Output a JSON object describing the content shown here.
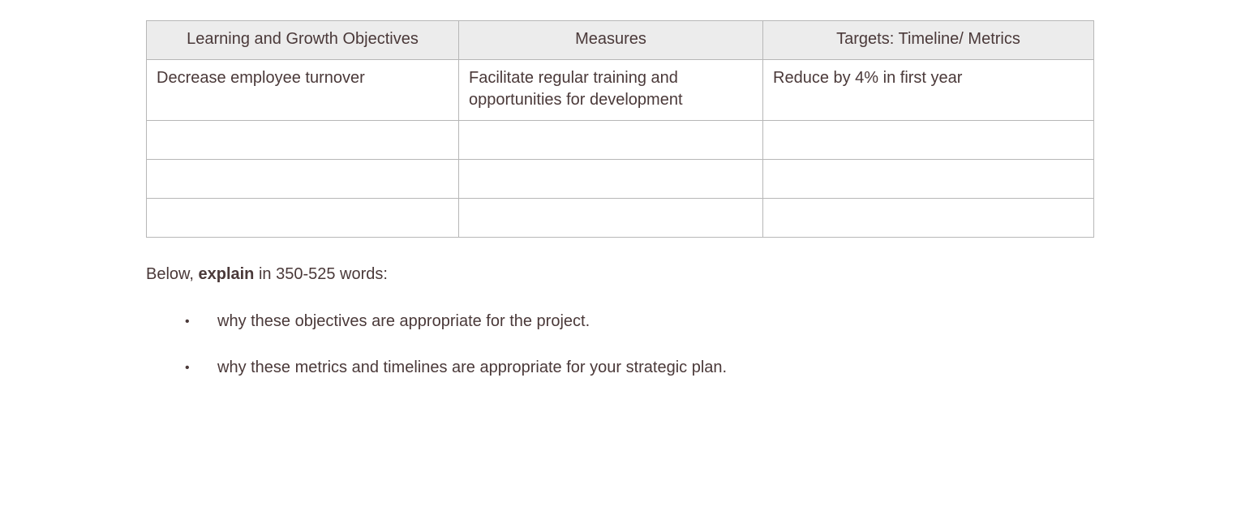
{
  "page": {
    "background": "#ffffff",
    "text_color": "#4a3939",
    "table_border_color": "#b7b7b7",
    "table_header_bg": "#ececec"
  },
  "table": {
    "headers": [
      "Learning and Growth Objectives",
      "Measures",
      "Targets: Timeline/ Metrics"
    ],
    "rows": [
      [
        "Decrease employee turnover",
        "Facilitate regular training and opportunities for development",
        "Reduce by 4% in first year"
      ],
      [
        "",
        "",
        ""
      ],
      [
        "",
        "",
        ""
      ],
      [
        "",
        "",
        ""
      ]
    ]
  },
  "instructions": {
    "intro_prefix": "Below, ",
    "intro_bold": "explain",
    "intro_suffix": " in 350-525 words:",
    "bullet_glyph": "•",
    "bullets": [
      "why these objectives are appropriate for the project.",
      "why these metrics and timelines are appropriate for your strategic plan."
    ]
  }
}
